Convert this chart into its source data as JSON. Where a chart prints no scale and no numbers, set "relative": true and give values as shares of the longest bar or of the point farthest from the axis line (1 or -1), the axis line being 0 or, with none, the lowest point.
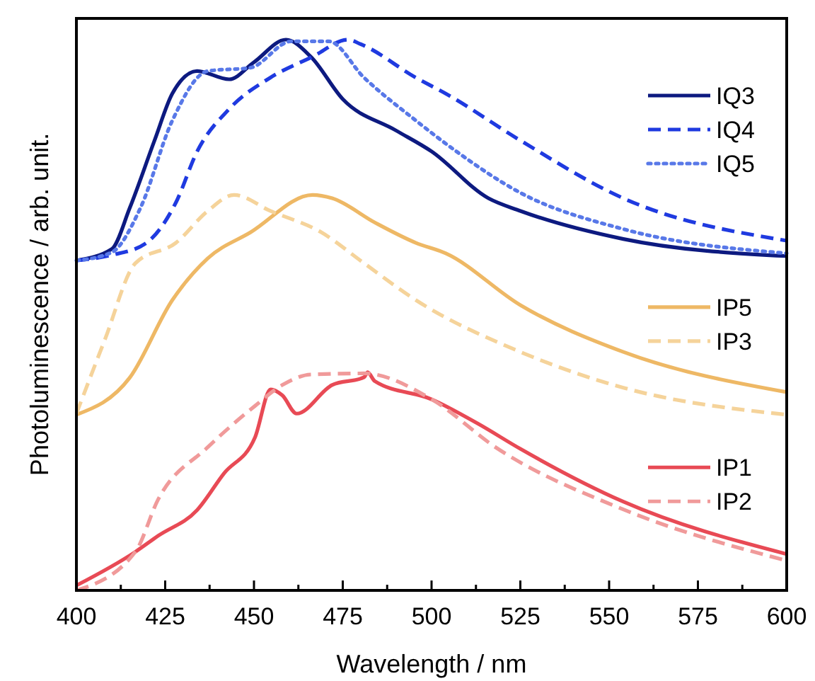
{
  "chart_data": {
    "type": "line",
    "relative": true,
    "xlabel": "Wavelength / nm",
    "ylabel": "Photoluminescence / arb. unit.",
    "xlim": [
      400,
      600
    ],
    "xticks": [
      400,
      {
        "value": 412.5,
        "label": null
      },
      425,
      {
        "value": 437.5,
        "label": null
      },
      450,
      {
        "value": 462.5,
        "label": null
      },
      475,
      {
        "value": 487.5,
        "label": null
      },
      500,
      {
        "value": 512.5,
        "label": null
      },
      525,
      {
        "value": 537.5,
        "label": null
      },
      550,
      {
        "value": 562.5,
        "label": null
      },
      575,
      {
        "value": 587.5,
        "label": null
      },
      600
    ],
    "legend": "right",
    "grid": false,
    "series": [
      {
        "name": "IQ3",
        "color": "#0d1a80",
        "line_style": "solid",
        "x": [
          400,
          410,
          415,
          422,
          427,
          434,
          443,
          450,
          459,
          466,
          475,
          490,
          500,
          516,
          525,
          554,
          600
        ],
        "values": [
          0.599,
          0.62,
          0.694,
          0.817,
          0.902,
          0.943,
          0.928,
          0.959,
          1.0,
          0.969,
          0.892,
          0.835,
          0.797,
          0.712,
          0.689,
          0.638,
          0.607
        ]
      },
      {
        "name": "IQ4",
        "color": "#1f3ae0",
        "line_style": "dashed",
        "x": [
          400,
          410,
          419.5,
          428,
          434,
          443,
          454.6,
          466.5,
          476.5,
          480,
          495.6,
          504,
          525,
          554,
          600
        ],
        "values": [
          0.599,
          0.609,
          0.63,
          0.704,
          0.797,
          0.874,
          0.931,
          0.969,
          1.0,
          0.992,
          0.931,
          0.902,
          0.817,
          0.712,
          0.635
        ]
      },
      {
        "name": "IQ5",
        "color": "#5878e8",
        "line_style": "dotted",
        "x": [
          400,
          410,
          418,
          427,
          437,
          449,
          460.5,
          471,
          481,
          495.6,
          507,
          525,
          554,
          600
        ],
        "values": [
          0.599,
          0.614,
          0.694,
          0.853,
          0.943,
          0.949,
          0.997,
          0.997,
          0.931,
          0.853,
          0.797,
          0.722,
          0.656,
          0.612
        ]
      },
      {
        "name": "IP5",
        "color": "#eeb865",
        "line_style": "solid",
        "x": [
          400,
          415,
          427,
          437,
          449,
          466.5,
          472,
          484,
          495.6,
          504,
          525,
          554,
          600
        ],
        "values": [
          0.319,
          0.386,
          0.527,
          0.603,
          0.65,
          0.718,
          0.712,
          0.668,
          0.631,
          0.612,
          0.518,
          0.433,
          0.36
        ]
      },
      {
        "name": "IP3",
        "color": "#f5d39a",
        "line_style": "dashed",
        "x": [
          400,
          408,
          416.6,
          428,
          437,
          444.4,
          454.6,
          469,
          481,
          495.6,
          525,
          554,
          600
        ],
        "values": [
          0.321,
          0.455,
          0.594,
          0.631,
          0.689,
          0.718,
          0.689,
          0.65,
          0.594,
          0.527,
          0.433,
          0.368,
          0.319
        ]
      },
      {
        "name": "IP1",
        "color": "#e84a55",
        "line_style": "solid",
        "x": [
          400,
          416.6,
          423,
          434,
          441.5,
          450.3,
          454.7,
          458,
          462,
          472,
          481,
          482,
          484,
          500,
          513,
          525,
          554,
          600
        ],
        "values": [
          0.009,
          0.07,
          0.099,
          0.146,
          0.212,
          0.278,
          0.365,
          0.354,
          0.321,
          0.373,
          0.387,
          0.396,
          0.38,
          0.347,
          0.303,
          0.257,
          0.161,
          0.066
        ]
      },
      {
        "name": "IP2",
        "color": "#f09a9a",
        "line_style": "dashed",
        "x": [
          400,
          416.6,
          423,
          437,
          450.3,
          458,
          466,
          481,
          500,
          518,
          554,
          600
        ],
        "values": [
          0,
          0.07,
          0.165,
          0.26,
          0.335,
          0.373,
          0.392,
          0.394,
          0.347,
          0.26,
          0.147,
          0.054
        ]
      }
    ]
  }
}
